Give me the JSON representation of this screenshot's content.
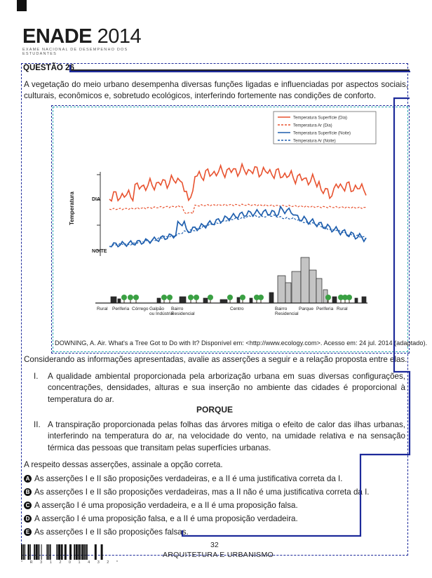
{
  "header": {
    "logo_main": "ENADE",
    "logo_year": "2014",
    "subtitle": "EXAME NACIONAL DE DESEMPENHO DOS ESTUDANTES"
  },
  "question": {
    "title": "QUESTÃO 26",
    "intro": "A vegetação do meio urbano desempenha diversas funções ligadas e influenciadas por aspectos sociais, culturais, econômicos e, sobretudo ecológicos, interferindo fortemente nas condições de conforto.",
    "figure": {
      "y_label": "Temperatura",
      "row_labels": [
        "DIA",
        "NOITE"
      ],
      "legend": [
        {
          "label": "Temperatura Superfície (Dia)",
          "color": "#e8522f",
          "style": "solid"
        },
        {
          "label": "Temperatura Ar (Dia)",
          "color": "#e8522f",
          "style": "dashed"
        },
        {
          "label": "Temperatura Superfície (Noite)",
          "color": "#1f5fae",
          "style": "solid"
        },
        {
          "label": "Temperatura Ar (Noite)",
          "color": "#1f5fae",
          "style": "dashed"
        }
      ],
      "zones": [
        "Rural",
        "Periferia",
        "Córrego",
        "Galpão ou Indústria",
        "Bairro Residencial",
        "Centro",
        "Bairro Residencial",
        "Parque",
        "Periferia",
        "Rural"
      ],
      "source": "DOWNING, A. Air. What's a Tree Got to Do with It? Disponível em: <http://www.ecology.com>. Acesso em: 24 jul. 2014 (adaptado)."
    },
    "instruction": "Considerando as informações apresentadas, avalie as asserções a seguir e a relação proposta entre elas.",
    "assertion1_num": "I.",
    "assertion1": "A qualidade ambiental proporcionada pela arborização urbana em suas diversas configurações, concentrações, densidades, alturas e sua inserção no ambiente das cidades é proporcional à temperatura do ar.",
    "porque": "PORQUE",
    "assertion2_num": "II.",
    "assertion2": "A transpiração proporcionada pelas folhas das árvores mitiga o efeito de calor das ilhas urbanas, interferindo na temperatura do ar, na velocidade do vento, na umidade relativa e na sensação térmica das pessoas que transitam pelas superfícies urbanas.",
    "prompt": "A respeito dessas asserções, assinale a opção correta.",
    "options": [
      {
        "letter": "A",
        "text": "As asserções I e II são proposições verdadeiras, e a II é uma justificativa correta da I."
      },
      {
        "letter": "B",
        "text": "As asserções I e II são proposições verdadeiras, mas a II não é uma justificativa correta da I."
      },
      {
        "letter": "C",
        "text": "A asserção I é uma proposição verdadeira, e a II é uma proposição falsa."
      },
      {
        "letter": "D",
        "text": "A asserção I é uma proposição falsa, e a II é uma proposição verdadeira."
      },
      {
        "letter": "E",
        "text": "As asserções I e II são proposições falsas."
      }
    ]
  },
  "footer": {
    "page_number": "32",
    "course": "ARQUITETURA E URBANISMO",
    "barcode_digits": "* R 3 1 2 0 1 4 3 2 *"
  },
  "colors": {
    "day": "#e8522f",
    "night": "#1f5fae",
    "annotation": "#1d2a9a"
  }
}
